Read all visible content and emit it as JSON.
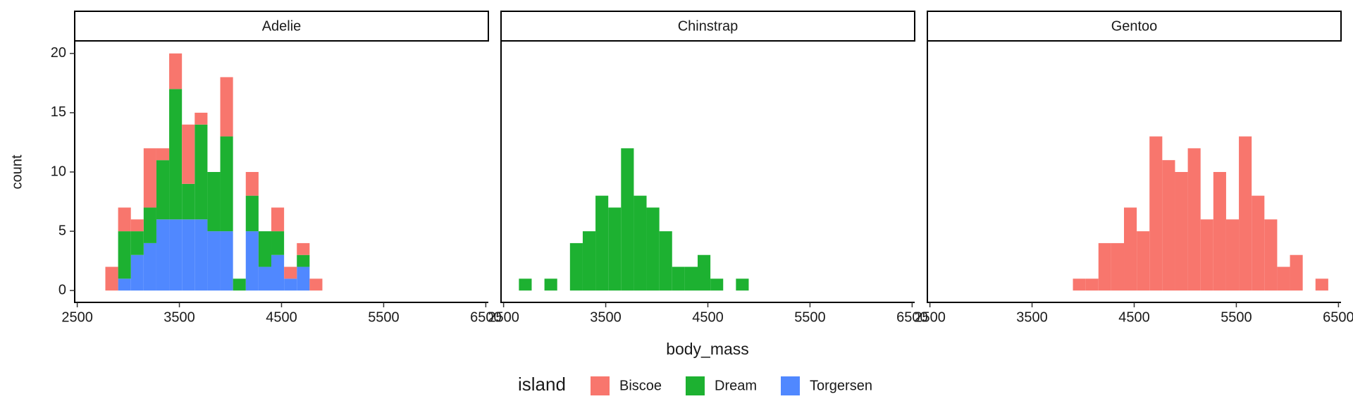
{
  "chart_data": {
    "type": "histogram",
    "xlabel": "body_mass",
    "ylabel": "count",
    "legend_title": "island",
    "bins": [
      2650,
      2775,
      2900,
      3025,
      3150,
      3275,
      3400,
      3525,
      3650,
      3775,
      3900,
      4025,
      4150,
      4275,
      4400,
      4525,
      4650,
      4775,
      4900,
      5025,
      5150,
      5275,
      5400,
      5525,
      5650,
      5775,
      5900,
      6025,
      6150,
      6275,
      6400
    ],
    "xlim": [
      2475,
      6525
    ],
    "xticks": [
      2500,
      3500,
      4500,
      5500,
      6500
    ],
    "ylim": [
      -1,
      21
    ],
    "yticks": [
      0,
      5,
      10,
      15,
      20
    ],
    "series": [
      {
        "name": "Biscoe",
        "color": "#f8766d"
      },
      {
        "name": "Dream",
        "color": "#1db131"
      },
      {
        "name": "Torgersen",
        "color": "#5088ff"
      }
    ],
    "facets": [
      {
        "title": "Adelie",
        "values": [
          [
            0,
            2,
            2,
            1,
            5,
            1,
            3,
            5,
            1,
            0,
            5,
            0,
            2,
            0,
            2,
            1,
            1,
            1,
            0,
            0,
            0,
            0,
            0,
            0,
            0,
            0,
            0,
            0,
            0,
            0
          ],
          [
            0,
            0,
            4,
            2,
            3,
            5,
            11,
            3,
            8,
            5,
            8,
            1,
            3,
            3,
            2,
            0,
            1,
            0,
            0,
            0,
            0,
            0,
            0,
            0,
            0,
            0,
            0,
            0,
            0,
            0
          ],
          [
            0,
            0,
            1,
            3,
            4,
            6,
            6,
            6,
            6,
            5,
            5,
            0,
            5,
            2,
            3,
            1,
            2,
            0,
            0,
            0,
            0,
            0,
            0,
            0,
            0,
            0,
            0,
            0,
            0,
            0
          ]
        ]
      },
      {
        "title": "Chinstrap",
        "values": [
          [
            0,
            0,
            0,
            0,
            0,
            0,
            0,
            0,
            0,
            0,
            0,
            0,
            0,
            0,
            0,
            0,
            0,
            0,
            0,
            0,
            0,
            0,
            0,
            0,
            0,
            0,
            0,
            0,
            0,
            0
          ],
          [
            1,
            0,
            1,
            0,
            4,
            5,
            8,
            7,
            12,
            8,
            7,
            5,
            2,
            2,
            3,
            1,
            0,
            1,
            0,
            0,
            0,
            0,
            0,
            0,
            0,
            0,
            0,
            0,
            0,
            0
          ],
          [
            0,
            0,
            0,
            0,
            0,
            0,
            0,
            0,
            0,
            0,
            0,
            0,
            0,
            0,
            0,
            0,
            0,
            0,
            0,
            0,
            0,
            0,
            0,
            0,
            0,
            0,
            0,
            0,
            0,
            0
          ]
        ]
      },
      {
        "title": "Gentoo",
        "values": [
          [
            0,
            0,
            0,
            0,
            0,
            0,
            0,
            0,
            0,
            0,
            1,
            1,
            4,
            4,
            7,
            5,
            13,
            11,
            10,
            12,
            6,
            10,
            6,
            13,
            8,
            6,
            2,
            3,
            0,
            1
          ],
          [
            0,
            0,
            0,
            0,
            0,
            0,
            0,
            0,
            0,
            0,
            0,
            0,
            0,
            0,
            0,
            0,
            0,
            0,
            0,
            0,
            0,
            0,
            0,
            0,
            0,
            0,
            0,
            0,
            0,
            0
          ],
          [
            0,
            0,
            0,
            0,
            0,
            0,
            0,
            0,
            0,
            0,
            0,
            0,
            0,
            0,
            0,
            0,
            0,
            0,
            0,
            0,
            0,
            0,
            0,
            0,
            0,
            0,
            0,
            0,
            0,
            0
          ]
        ]
      }
    ]
  }
}
